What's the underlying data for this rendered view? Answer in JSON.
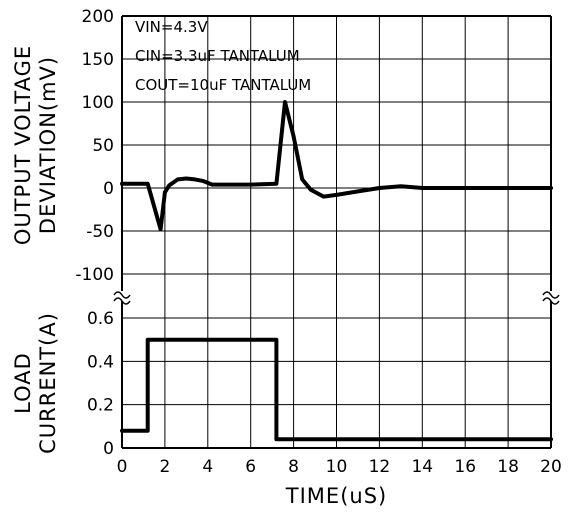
{
  "chart_data": {
    "type": "line",
    "x": {
      "label": "TIME(uS)",
      "range": [
        0,
        20
      ],
      "ticks": [
        0,
        2,
        4,
        6,
        8,
        10,
        12,
        14,
        16,
        18,
        20
      ],
      "tick_labels": [
        "0",
        "2",
        "4",
        "6",
        "8",
        "10",
        "12",
        "14",
        "16",
        "18",
        "20"
      ]
    },
    "top_panel": {
      "ylabel_lines": [
        "OUTPUT VOLTAGE",
        "DEVIATION(mV)"
      ],
      "ylim": [
        -100,
        200
      ],
      "yticks": [
        -100,
        -50,
        0,
        50,
        100,
        150,
        200
      ],
      "ytick_labels": [
        "-100",
        "-50",
        "0",
        "50",
        "100",
        "150",
        "200"
      ],
      "series": {
        "x": [
          0,
          1.2,
          1.8,
          2.0,
          2.2,
          2.6,
          3.0,
          3.4,
          3.8,
          4.2,
          5,
          6,
          7.2,
          7.6,
          8.0,
          8.4,
          8.8,
          9.4,
          10,
          11,
          12,
          13,
          14,
          16,
          18,
          20
        ],
        "y": [
          5,
          5,
          -48,
          -5,
          3,
          10,
          11,
          10,
          8,
          4,
          4,
          4,
          5,
          100,
          60,
          10,
          -2,
          -10,
          -8,
          -4,
          0,
          2,
          0,
          0,
          0,
          0
        ]
      },
      "annotations": [
        "VIN=4.3V",
        "CIN=3.3uF TANTALUM",
        "COUT=10uF TANTALUM"
      ]
    },
    "bottom_panel": {
      "ylabel_lines": [
        "LOAD",
        "CURRENT(A)"
      ],
      "ylim": [
        0,
        0.6
      ],
      "yticks": [
        0,
        0.2,
        0.4,
        0.6
      ],
      "ytick_labels": [
        "0",
        "0.2",
        "0.4",
        "0.6"
      ],
      "series": {
        "x": [
          0,
          1.2,
          1.2,
          7.2,
          7.2,
          20
        ],
        "y": [
          0.08,
          0.08,
          0.5,
          0.5,
          0.04,
          0.04
        ]
      }
    },
    "grid": true
  }
}
